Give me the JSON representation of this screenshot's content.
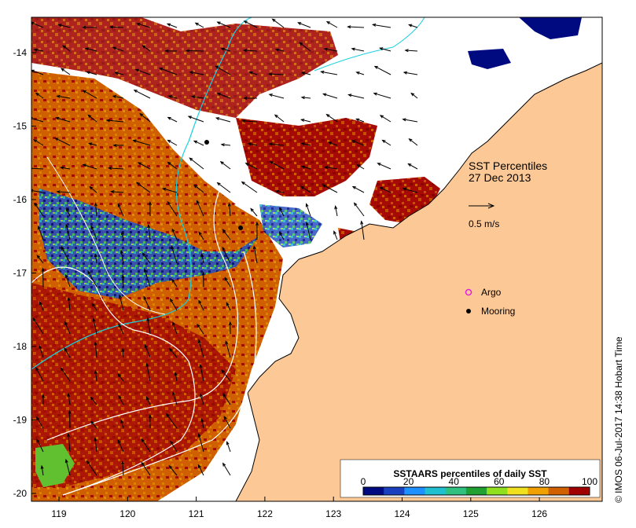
{
  "map": {
    "title": "SST Percentiles",
    "date": "27 Dec 2013",
    "scale_label": "0.5 m/s",
    "legend_argo": "Argo",
    "legend_mooring": "Mooring",
    "colorbar_title": "SSTAARS percentiles of daily SST",
    "colorbar_ticks": [
      "0",
      "20",
      "40",
      "60",
      "80",
      "100"
    ],
    "colorbar_colors": [
      "#000a80",
      "#1a3fbf",
      "#1e90ff",
      "#20c0d0",
      "#30c080",
      "#20a030",
      "#90e020",
      "#f0e020",
      "#f0a000",
      "#d06000",
      "#a00000"
    ],
    "x_ticks": [
      "119",
      "120",
      "121",
      "122",
      "123",
      "124",
      "125",
      "126"
    ],
    "y_ticks": [
      "-14",
      "-15",
      "-16",
      "-17",
      "-18",
      "-19",
      "-20"
    ],
    "credit": "© IMOS 06-Jul-2017 14:38 Hobart Time",
    "land_color": "#fcc896",
    "no_data_color": "#ffffff"
  }
}
